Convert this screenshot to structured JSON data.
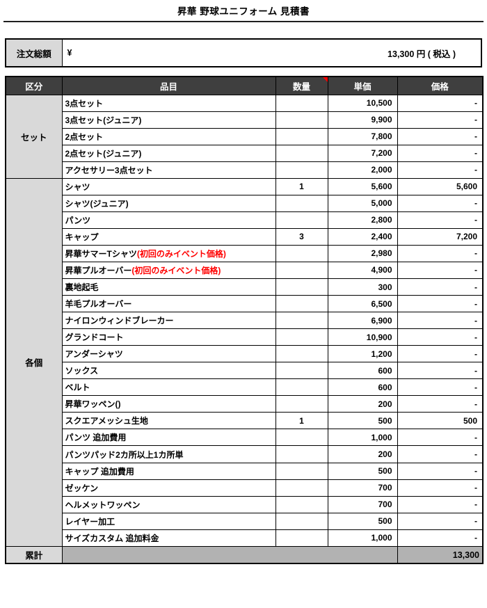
{
  "title": "昇華 野球ユニフォーム 見積書",
  "order_total": {
    "label": "注文総額",
    "currency_symbol": "¥",
    "amount_text": "13,300 円 ( 税込 )"
  },
  "table": {
    "headers": {
      "category": "区分",
      "item": "品目",
      "qty": "数量",
      "unit_price": "単価",
      "price": "価格"
    },
    "qty_comment_indicator": "red-triangle-icon",
    "sections": [
      {
        "label": "セット",
        "items": [
          {
            "name": "3点セット",
            "qty": "",
            "unit_price": "10,500",
            "price": "-"
          },
          {
            "name": "3点セット(ジュニア)",
            "qty": "",
            "unit_price": "9,900",
            "price": "-"
          },
          {
            "name": "2点セット",
            "qty": "",
            "unit_price": "7,800",
            "price": "-"
          },
          {
            "name": "2点セット(ジュニア)",
            "qty": "",
            "unit_price": "7,200",
            "price": "-"
          },
          {
            "name": "アクセサリー3点セット",
            "qty": "",
            "unit_price": "2,000",
            "price": "-"
          }
        ]
      },
      {
        "label": "各個",
        "items": [
          {
            "name": "シャツ",
            "qty": "1",
            "unit_price": "5,600",
            "price": "5,600"
          },
          {
            "name": "シャツ(ジュニア)",
            "qty": "",
            "unit_price": "5,000",
            "price": "-"
          },
          {
            "name": "パンツ",
            "qty": "",
            "unit_price": "2,800",
            "price": "-"
          },
          {
            "name": "キャップ",
            "qty": "3",
            "unit_price": "2,400",
            "price": "7,200"
          },
          {
            "name": "昇華サマーTシャツ",
            "note": "(初回のみイベント価格)",
            "qty": "",
            "unit_price": "2,980",
            "price": "-"
          },
          {
            "name": "昇華プルオーバー",
            "note": "(初回のみイベント価格)",
            "qty": "",
            "unit_price": "4,900",
            "price": "-"
          },
          {
            "name": "裏地起毛",
            "qty": "",
            "unit_price": "300",
            "price": "-"
          },
          {
            "name": "羊毛プルオーバー",
            "qty": "",
            "unit_price": "6,500",
            "price": "-"
          },
          {
            "name": "ナイロンウィンドブレーカー",
            "qty": "",
            "unit_price": "6,900",
            "price": "-"
          },
          {
            "name": "グランドコート",
            "qty": "",
            "unit_price": "10,900",
            "price": "-"
          },
          {
            "name": "アンダーシャツ",
            "qty": "",
            "unit_price": "1,200",
            "price": "-"
          },
          {
            "name": "ソックス",
            "qty": "",
            "unit_price": "600",
            "price": "-"
          },
          {
            "name": "ベルト",
            "qty": "",
            "unit_price": "600",
            "price": "-"
          },
          {
            "name": "昇華ワッペン()",
            "qty": "",
            "unit_price": "200",
            "price": "-"
          },
          {
            "name": "スクエアメッシュ生地",
            "qty": "1",
            "unit_price": "500",
            "price": "500"
          },
          {
            "name": "パンツ 追加費用",
            "qty": "",
            "unit_price": "1,000",
            "price": "-"
          },
          {
            "name": "パンツパッド2カ所以上1カ所単",
            "qty": "",
            "unit_price": "200",
            "price": "-"
          },
          {
            "name": "キャップ 追加費用",
            "qty": "",
            "unit_price": "500",
            "price": "-"
          },
          {
            "name": "ゼッケン",
            "qty": "",
            "unit_price": "700",
            "price": "-"
          },
          {
            "name": "ヘルメットワッペン",
            "qty": "",
            "unit_price": "700",
            "price": "-"
          },
          {
            "name": "レイヤー加工",
            "qty": "",
            "unit_price": "500",
            "price": "-"
          },
          {
            "name": "サイズカスタム 追加料金",
            "qty": "",
            "unit_price": "1,000",
            "price": "-"
          }
        ]
      }
    ],
    "footer": {
      "label": "累計",
      "total": "13,300"
    }
  },
  "colors": {
    "header_bg": "#3f3f3f",
    "header_text": "#ffffff",
    "category_bg": "#d9d9d9",
    "total_bg": "#b2b2b2",
    "note_red": "#ff0000",
    "border": "#000000"
  }
}
